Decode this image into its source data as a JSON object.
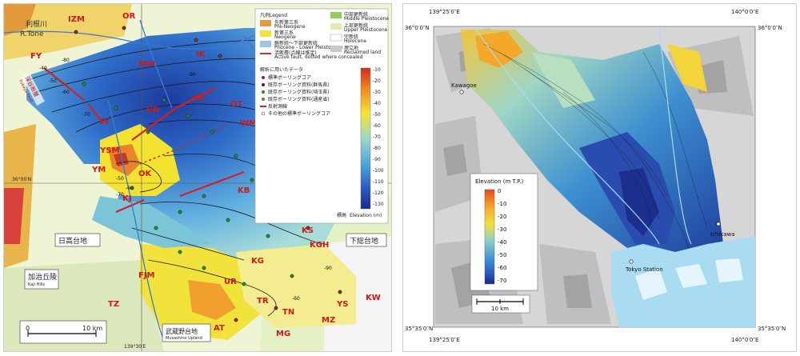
{
  "left_map": {
    "river_labels": [
      "利根川",
      "R.Tone"
    ],
    "legend": {
      "title": "凡例",
      "title_en": "Legend",
      "geology": [
        {
          "jp": "先新第三系",
          "en": "Pre-Neogene",
          "color": "#e39a3a"
        },
        {
          "jp": "新第三系",
          "en": "Neogene",
          "color": "#f3e23a"
        },
        {
          "jp": "鮮新統～下部更新統",
          "en": "Pliocene - Lower Pleistocene",
          "color": "#9fc4e8"
        },
        {
          "jp": "活断層(点線は推定)",
          "en": "Active fault, dotted where concealed",
          "color": "#d43030"
        },
        {
          "jp": "中部更新統",
          "en": "Middle Pleistocene",
          "color": "#8fcf55"
        },
        {
          "jp": "上部更新統",
          "en": "Upper Pleistocene",
          "color": "#dbeeb0"
        },
        {
          "jp": "完新統",
          "en": "Holocene",
          "color": "#ffffff"
        },
        {
          "jp": "埋立地",
          "en": "Reclaimed land",
          "color": "#c8c8c8"
        }
      ],
      "data_title": "解析に用いたデータ",
      "data_items": [
        "標準ボーリングコア",
        "既存ボーリング資料(群馬県)",
        "既存ボーリング資料(埼玉県)",
        "既存ボーリング資料(通産省)",
        "反射測線",
        "その他の標準ボーリングコア"
      ],
      "colorbar_ticks": [
        "-10",
        "-20",
        "-30",
        "-40",
        "-50",
        "-60",
        "-70",
        "-80",
        "-90",
        "-100",
        "-110",
        "-120",
        "-130"
      ],
      "colorbar_title": "標高",
      "colorbar_title_en": "Elevation (m)"
    },
    "site_labels": [
      "IZM",
      "OR",
      "FY",
      "MW",
      "IK",
      "KZ",
      "GD",
      "TY",
      "OT",
      "WM",
      "YSM",
      "YM",
      "OK",
      "KJ",
      "KB",
      "ND",
      "KK",
      "KS",
      "KGH",
      "KG",
      "UR",
      "FJM",
      "TR",
      "TN",
      "YS",
      "KW",
      "TZ",
      "MG",
      "AT",
      "MZ"
    ],
    "fault_label": [
      "深谷断層",
      "Fukaya Fault"
    ],
    "place_labels": [
      {
        "jp": "日高台地",
        "en": ""
      },
      {
        "jp": "加治丘陵",
        "en": "Kaji Hills"
      },
      {
        "jp": "下総台地",
        "en": ""
      },
      {
        "jp": "武蔵野台地",
        "en": "Musashino Upland"
      }
    ],
    "coords": [
      "36°00′N",
      "139°30′E"
    ],
    "contour_labels": [
      "-40",
      "-50",
      "-60",
      "-70",
      "-80",
      "-90",
      "-50",
      "-60",
      "-70",
      "-90",
      "-60"
    ],
    "scale": {
      "start": "0",
      "end": "10 km"
    }
  },
  "right_map": {
    "coords": {
      "top_left_lon": "139°25′0″E",
      "top_right_lon": "140°0′0″E",
      "top_left_lat": "36°0′0″N",
      "top_right_lat": "36°0′0″N",
      "bottom_left_lat": "35°35′0″N",
      "bottom_right_lat": "35°35′0″N",
      "bottom_left_lon": "139°25′0″E",
      "bottom_right_lon": "140°0′0″E"
    },
    "places": [
      "Kawagoe",
      "Ichikawa",
      "Tokyo Station"
    ],
    "legend": {
      "title": "Elevation (m T.P.)",
      "ticks": [
        "0",
        "-10",
        "-20",
        "-30",
        "-40",
        "-50",
        "-60",
        "-70"
      ]
    },
    "scale": "10 km"
  }
}
